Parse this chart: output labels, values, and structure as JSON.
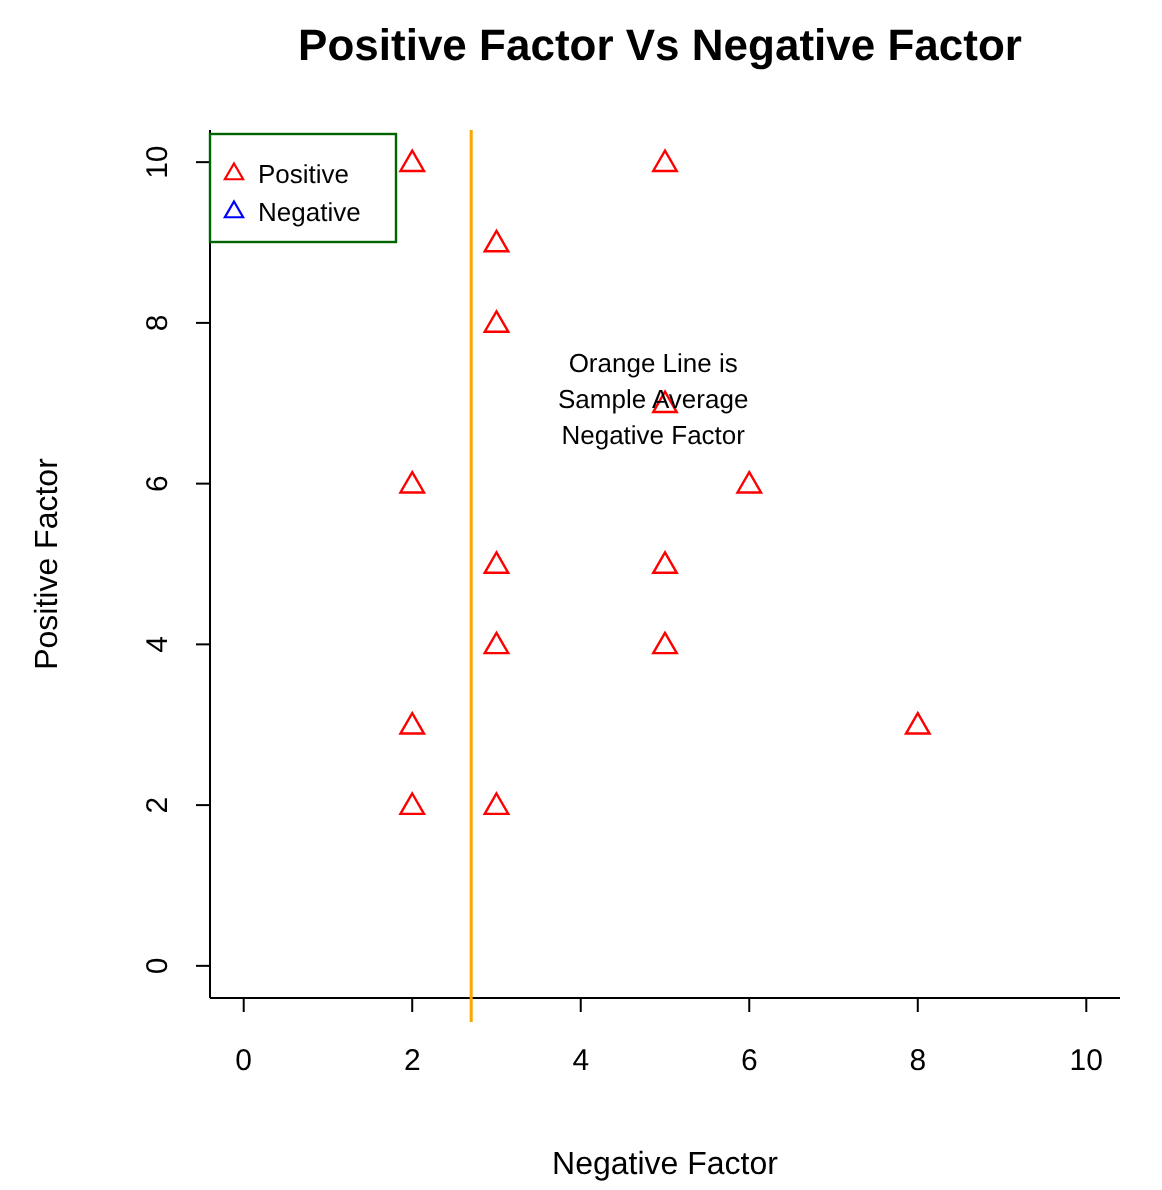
{
  "chart_data": {
    "type": "scatter",
    "title": "Positive Factor Vs Negative Factor",
    "xlabel": "Negative Factor",
    "ylabel": "Positive Factor",
    "xlim": [
      -0.4,
      10.4
    ],
    "ylim": [
      -0.4,
      10.4
    ],
    "xticks": [
      0,
      2,
      4,
      6,
      8,
      10
    ],
    "yticks": [
      0,
      2,
      4,
      6,
      8,
      10
    ],
    "series": [
      {
        "name": "Positive",
        "color": "#ff0000",
        "x": [
          2,
          5,
          3,
          3,
          5,
          2,
          6,
          3,
          5,
          3,
          5,
          2,
          8,
          2,
          3
        ],
        "values": [
          10,
          10,
          9,
          8,
          7,
          6,
          6,
          5,
          5,
          4,
          4,
          3,
          3,
          2,
          2
        ]
      },
      {
        "name": "Negative",
        "color": "#0000ff"
      }
    ],
    "marker": "triangle",
    "grid": false,
    "legend": "top left",
    "ref_lines": [
      {
        "axis": "x",
        "value": 2.7,
        "color": "#ffa500"
      }
    ],
    "annotations": [
      "Orange Line is\nSample Average\nNegative Factor"
    ]
  }
}
